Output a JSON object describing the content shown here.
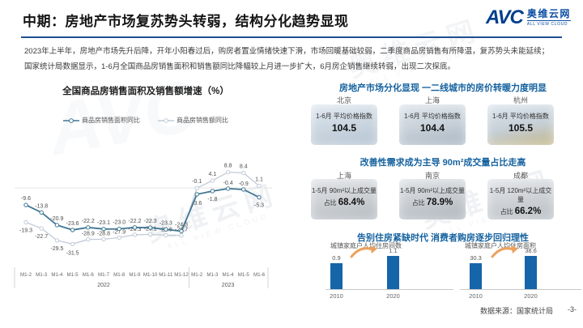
{
  "header": {
    "title": "中期：房地产市场复苏势头转弱，结构分化趋势显现",
    "logo": {
      "abbr": "AVC",
      "name": "奥维云网",
      "tagline": "ALL VIEW CLOUD"
    }
  },
  "intro": {
    "line1": "2023年上半年，房地产市场先升后降，开年小阳春过后，购房者置业情绪快速下滑，市场回暖基础较弱，二季度商品房销售有所降温，复苏势头未能延续；",
    "line2": "国家统计局数据显示，1-6月全国商品房销售面积和销售额同比降幅较上月进一步扩大，6月房企销售继续转弱，出现二次探底。"
  },
  "chart_data": [
    {
      "type": "line",
      "title": "全国商品房销售面积及销售额增速（%）",
      "categories": [
        "M1-2",
        "M1-3",
        "M1-4",
        "M1-5",
        "M1-6",
        "M1-7",
        "M1-8",
        "M1-9",
        "M1-10",
        "M1-11",
        "M1-12",
        "M1-2",
        "M1-3",
        "M1-4",
        "M1-5",
        "M1-6"
      ],
      "year_groups": [
        {
          "label": "2022",
          "count": 11
        },
        {
          "label": "2023",
          "count": 5
        }
      ],
      "series": [
        {
          "name": "商品房销售面积同比",
          "color": "#3e7693",
          "values": [
            -9.6,
            -13.8,
            -20.9,
            -23.6,
            -22.2,
            -23.1,
            -23.0,
            -22.2,
            -22.3,
            -23.3,
            -24.3,
            -3.6,
            -1.8,
            -0.4,
            -0.9,
            -5.3
          ]
        },
        {
          "name": "商品房销售额同比",
          "color": "#c2cbd8",
          "values": [
            -19.3,
            -22.7,
            -29.5,
            -31.5,
            -28.9,
            -28.8,
            -27.9,
            -26.3,
            -26.1,
            -26.6,
            -26.7,
            -0.1,
            4.1,
            8.8,
            8.4,
            1.1
          ]
        }
      ],
      "ylim": [
        -35,
        12
      ],
      "grid": "zero line only",
      "legend_position": "top"
    },
    {
      "type": "bar",
      "title": "城镇家庭户人均住房间数",
      "categories": [
        "2010",
        "2020"
      ],
      "values": [
        0.9,
        1.1
      ]
    },
    {
      "type": "bar",
      "title": "城镇家庭户人均住房面积",
      "categories": [
        "2010",
        "2020"
      ],
      "values": [
        30.3,
        38.6
      ]
    }
  ],
  "right_panel": {
    "sections": [
      {
        "title": "房地产市场分化显现 一二线城市的房价转暖力度明显",
        "cards": [
          {
            "city": "北京",
            "label": "1-6月 平均价格指数",
            "value": "104.5"
          },
          {
            "city": "上海",
            "label": "1-6月 平均价格指数",
            "value": "104.4"
          },
          {
            "city": "杭州",
            "label": "1-6月 平均价格指数",
            "value": "105.5"
          }
        ]
      },
      {
        "title": "改善性需求成为主导 90m²成交量占比走高",
        "cards": [
          {
            "city": "上海",
            "label": "1-5月 90m²以上成交量",
            "value_prefix": "占比",
            "value": "68.4%"
          },
          {
            "city": "南京",
            "label": "1-5月 90m²以上成交量",
            "value_prefix": "占比",
            "value": "78.9%"
          },
          {
            "city": "成都",
            "label": "1-5月 120m²以上成交量",
            "value_prefix": "占比",
            "value": "66.2%"
          }
        ]
      },
      {
        "title": "告别住房紧缺时代 消费者购房逐步回归理性"
      }
    ]
  },
  "footer": {
    "source": "数据来源：国家统计局",
    "page": "-3-"
  },
  "watermark": {
    "line1": "奥维云网",
    "line2": "ALL VIEW CLOUD"
  },
  "colors": {
    "title_blue": "#15629f",
    "rule_blue": "#1d4f91",
    "bar_blue": "#1565a8",
    "arrow_orange": "#eba25e",
    "logo_navy": "#003f8c",
    "logo_orange": "#f08300"
  }
}
